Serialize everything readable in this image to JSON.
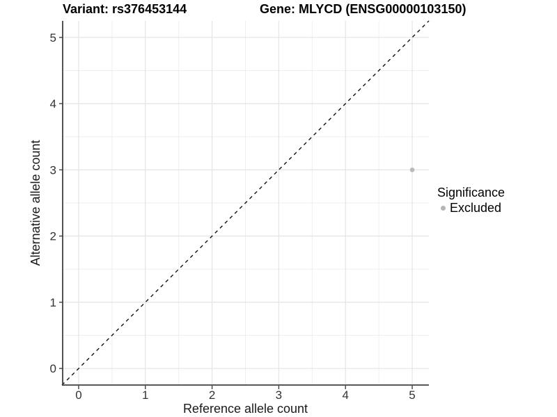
{
  "titles": {
    "variant": "Variant: rs376453144",
    "gene": "Gene: MLYCD (ENSG00000103150)"
  },
  "chart_data": {
    "type": "scatter",
    "title_left": "Variant: rs376453144",
    "title_right": "Gene: MLYCD (ENSG00000103150)",
    "xlabel": "Reference allele count",
    "ylabel": "Alternative allele count",
    "xlim": [
      -0.25,
      5.25
    ],
    "ylim": [
      -0.25,
      5.25
    ],
    "xticks": [
      0,
      1,
      2,
      3,
      4,
      5
    ],
    "yticks": [
      0,
      1,
      2,
      3,
      4,
      5
    ],
    "grid": {
      "major_step": 1,
      "minor_step": 0.5,
      "major_color": "#e4e4e4",
      "minor_color": "#efefef"
    },
    "points": [
      {
        "x": 5,
        "y": 3,
        "series": "Excluded",
        "color": "#b9b9b9"
      }
    ],
    "reference_line": {
      "kind": "identity",
      "from": -0.25,
      "to": 5.25,
      "style": "dashed",
      "color": "#111111"
    },
    "legend": {
      "title": "Significance",
      "position": "right",
      "entries": [
        {
          "label": "Excluded",
          "color": "#b5b5b5",
          "marker": "circle"
        }
      ]
    },
    "axis_color": "#404040",
    "tick_label_color": "#333333",
    "axis_title_color": "#1a1a1a"
  }
}
